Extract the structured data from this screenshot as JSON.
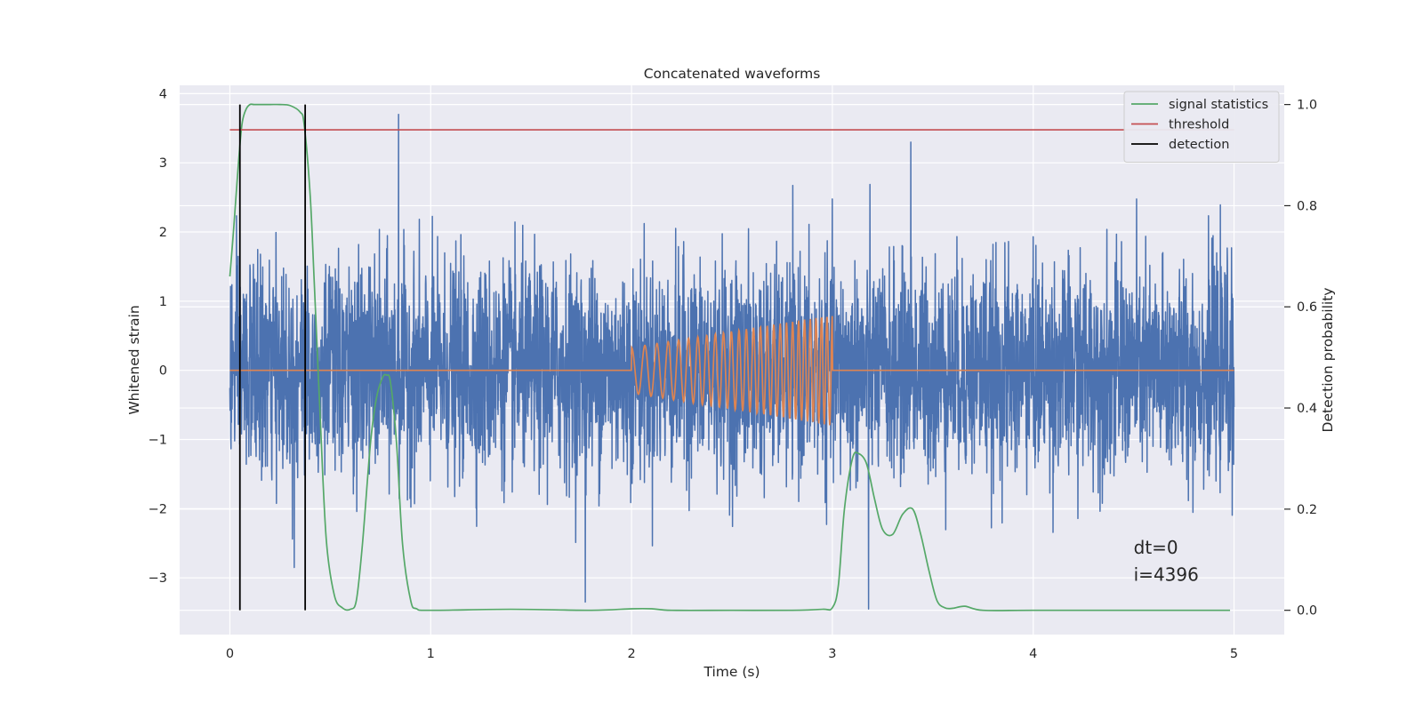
{
  "chart_data": {
    "type": "line",
    "title": "Concatenated waveforms",
    "xlabel": "Time (s)",
    "ylabel": "Whitened strain",
    "y2label": "Detection probability",
    "xlim": [
      -0.25,
      5.25
    ],
    "ylim": [
      -3.82,
      4.12
    ],
    "y2lim": [
      -0.048,
      1.038
    ],
    "x_ticks": [
      0,
      1,
      2,
      3,
      4,
      5
    ],
    "y_ticks": [
      -3,
      -2,
      -1,
      0,
      1,
      2,
      3,
      4
    ],
    "y2_ticks": [
      0.0,
      0.2,
      0.4,
      0.6,
      0.8,
      1.0
    ],
    "x_tick_labels": [
      "0",
      "1",
      "2",
      "3",
      "4",
      "5"
    ],
    "y_tick_labels": [
      "−3",
      "−2",
      "−1",
      "0",
      "1",
      "2",
      "3",
      "4"
    ],
    "y2_tick_labels": [
      "0.0",
      "0.2",
      "0.4",
      "0.6",
      "0.8",
      "1.0"
    ],
    "grid": true,
    "legend_position": "top-right",
    "series": [
      {
        "name": "",
        "axis": "left",
        "color": "#4c72b0",
        "kind": "noise",
        "x_range": [
          0,
          5
        ],
        "amplitude_std": 0.75,
        "notable_peaks": [
          [
            0.84,
            3.7
          ],
          [
            3.39,
            3.3
          ],
          [
            0.32,
            -2.85
          ],
          [
            3.18,
            -3.45
          ],
          [
            1.77,
            -3.35
          ]
        ]
      },
      {
        "name": "",
        "axis": "left",
        "color": "#dd8452",
        "kind": "chirp",
        "x_range": [
          0,
          5
        ],
        "chirp_start": 2.0,
        "chirp_end": 3.0,
        "amp_start": 0.33,
        "amp_end": 0.8,
        "cycles": 26
      },
      {
        "name": "signal statistics",
        "axis": "right",
        "color": "#55a868",
        "x": [
          0.0,
          0.02,
          0.04,
          0.06,
          0.08,
          0.1,
          0.12,
          0.15,
          0.2,
          0.25,
          0.3,
          0.35,
          0.37,
          0.4,
          0.42,
          0.45,
          0.48,
          0.52,
          0.56,
          0.6,
          0.63,
          0.66,
          0.7,
          0.73,
          0.76,
          0.78,
          0.8,
          0.83,
          0.86,
          0.9,
          0.93,
          1.0,
          1.4,
          1.8,
          2.0,
          2.1,
          2.2,
          2.5,
          2.8,
          2.95,
          3.0,
          3.03,
          3.06,
          3.1,
          3.13,
          3.17,
          3.21,
          3.25,
          3.3,
          3.35,
          3.4,
          3.44,
          3.48,
          3.52,
          3.56,
          3.6,
          3.66,
          3.75,
          4.0,
          4.5,
          4.98
        ],
        "values": [
          0.66,
          0.76,
          0.87,
          0.96,
          0.99,
          1.0,
          1.0,
          1.0,
          1.0,
          1.0,
          0.998,
          0.985,
          0.96,
          0.82,
          0.65,
          0.38,
          0.14,
          0.03,
          0.005,
          0.002,
          0.02,
          0.13,
          0.33,
          0.42,
          0.46,
          0.465,
          0.45,
          0.33,
          0.13,
          0.02,
          0.003,
          0.0,
          0.002,
          0.0,
          0.003,
          0.003,
          0.0,
          0.0,
          0.0,
          0.002,
          0.005,
          0.05,
          0.2,
          0.3,
          0.31,
          0.29,
          0.22,
          0.16,
          0.15,
          0.19,
          0.2,
          0.15,
          0.08,
          0.02,
          0.005,
          0.004,
          0.008,
          0.0,
          0.0,
          0.0,
          0.0
        ]
      },
      {
        "name": "threshold",
        "axis": "right",
        "color": "#c44e52",
        "x": [
          0.0,
          5.0
        ],
        "values": [
          0.95,
          0.95
        ]
      },
      {
        "name": "detection",
        "axis": "right",
        "color": "#000000",
        "kind": "vlines",
        "x": [
          0.05,
          0.375
        ],
        "ymin": 0.0,
        "ymax": 1.0
      }
    ],
    "annotations": [
      {
        "text": "dt=0",
        "x": 4.5,
        "y": -2.65
      },
      {
        "text": "i=4396",
        "x": 4.5,
        "y": -3.04
      }
    ]
  }
}
